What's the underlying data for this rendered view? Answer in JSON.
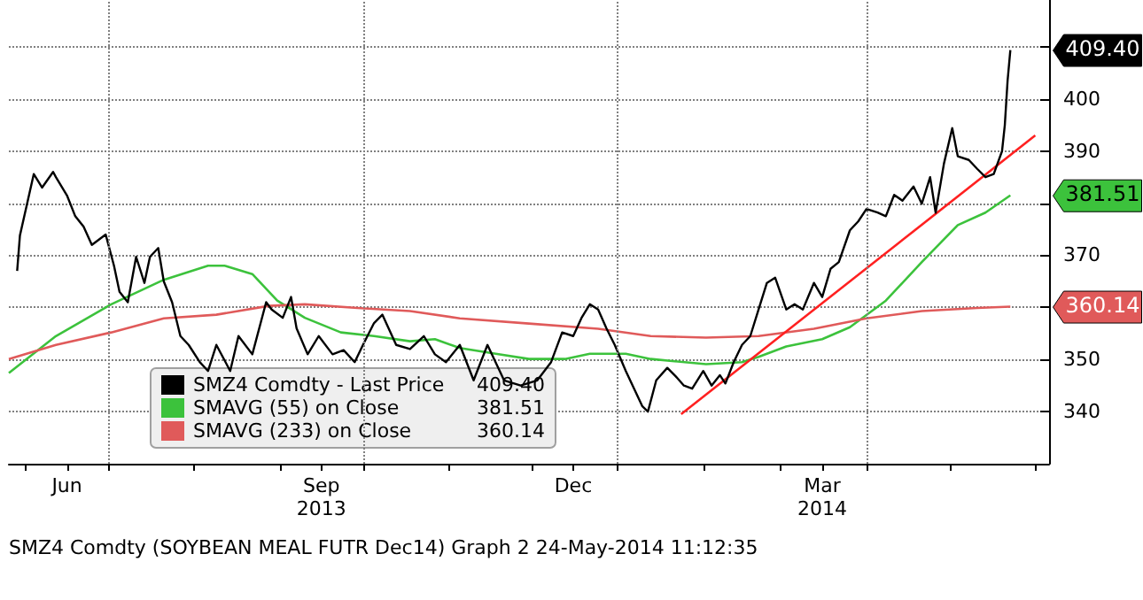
{
  "chart_data": {
    "type": "line",
    "marker": "none",
    "line_style": "solid",
    "grid": "y",
    "legend": "bottom left",
    "xlim": [
      "2013-05-26",
      "2014-06-06"
    ],
    "xticks": [
      {
        "value": "2013-06-01",
        "label": null
      },
      {
        "value": "2013-06-16",
        "label": "Jun"
      },
      {
        "value": "2013-07-01",
        "label": null
      },
      {
        "value": "2013-08-01",
        "label": null
      },
      {
        "value": "2013-09-01",
        "label": null
      },
      {
        "value": "2013-09-16",
        "label": "Sep\n2013"
      },
      {
        "value": "2013-10-01",
        "label": null
      },
      {
        "value": "2013-11-01",
        "label": null
      },
      {
        "value": "2013-12-01",
        "label": null
      },
      {
        "value": "2013-12-16",
        "label": "Dec"
      },
      {
        "value": "2014-01-01",
        "label": null
      },
      {
        "value": "2014-02-01",
        "label": null
      },
      {
        "value": "2014-03-01",
        "label": null
      },
      {
        "value": "2014-03-16",
        "label": "Mar\n2014"
      },
      {
        "value": "2014-04-01",
        "label": null
      },
      {
        "value": "2014-05-01",
        "label": null
      },
      {
        "value": "2014-06-01",
        "label": null
      }
    ],
    "ylim": [
      330,
      419
    ],
    "yticks": [
      340,
      350,
      {
        "value": 360,
        "label": null
      },
      370,
      {
        "value": 380,
        "label": null
      },
      390,
      400,
      {
        "value": 410,
        "label": null
      }
    ],
    "ref_lines": [
      {
        "axis": "x",
        "value": "2013-07-01",
        "color": "#808080",
        "line_style": "dotted"
      },
      {
        "axis": "x",
        "value": "2013-10-01",
        "color": "#808080",
        "line_style": "dotted"
      },
      {
        "axis": "x",
        "value": "2014-01-01",
        "color": "#808080",
        "line_style": "dotted"
      },
      {
        "axis": "x",
        "value": "2014-04-01",
        "color": "#808080",
        "line_style": "dotted"
      }
    ],
    "series": [
      {
        "name": "SMZ4 Comdty - Last Price",
        "color": "#000000",
        "x": [
          "2013-05-29",
          "2013-05-30",
          "2013-06-04",
          "2013-06-07",
          "2013-06-11",
          "2013-06-12",
          "2013-06-16",
          "2013-06-19",
          "2013-06-22",
          "2013-06-25",
          "2013-06-30",
          "2013-07-03",
          "2013-07-05",
          "2013-07-08",
          "2013-07-11",
          "2013-07-14",
          "2013-07-16",
          "2013-07-19",
          "2013-07-21",
          "2013-07-24",
          "2013-07-27",
          "2013-07-30",
          "2013-08-03",
          "2013-08-06",
          "2013-08-09",
          "2013-08-14",
          "2013-08-17",
          "2013-08-22",
          "2013-08-27",
          "2013-08-29",
          "2013-09-02",
          "2013-09-05",
          "2013-09-07",
          "2013-09-11",
          "2013-09-15",
          "2013-09-20",
          "2013-09-24",
          "2013-09-28",
          "2013-10-01",
          "2013-10-05",
          "2013-10-08",
          "2013-10-13",
          "2013-10-18",
          "2013-10-23",
          "2013-10-27",
          "2013-10-31",
          "2013-11-05",
          "2013-11-10",
          "2013-11-15",
          "2013-11-21",
          "2013-11-27",
          "2013-12-03",
          "2013-12-08",
          "2013-12-12",
          "2013-12-16",
          "2013-12-19",
          "2013-12-22",
          "2013-12-25",
          "2013-12-28",
          "2013-12-31",
          "2014-01-04",
          "2014-01-07",
          "2014-01-10",
          "2014-01-12",
          "2014-01-15",
          "2014-01-19",
          "2014-01-22",
          "2014-01-25",
          "2014-01-28",
          "2014-02-01",
          "2014-02-04",
          "2014-02-07",
          "2014-02-09",
          "2014-02-12",
          "2014-02-15",
          "2014-02-18",
          "2014-02-21",
          "2014-02-24",
          "2014-02-27",
          "2014-03-03",
          "2014-03-06",
          "2014-03-09",
          "2014-03-13",
          "2014-03-16",
          "2014-03-19",
          "2014-03-22",
          "2014-03-26",
          "2014-03-29",
          "2014-04-01",
          "2014-04-05",
          "2014-04-08",
          "2014-04-11",
          "2014-04-14",
          "2014-04-18",
          "2014-04-21",
          "2014-04-24",
          "2014-04-26",
          "2014-04-29",
          "2014-05-02",
          "2014-05-04",
          "2014-05-08",
          "2014-05-11",
          "2014-05-14",
          "2014-05-17",
          "2014-05-20",
          "2014-05-21",
          "2014-05-22",
          "2014-05-23"
        ],
        "values": [
          367.0,
          373.8,
          385.6,
          383.0,
          386.0,
          385.0,
          381.5,
          377.5,
          375.5,
          372.0,
          374.0,
          368.0,
          363.0,
          361.0,
          369.7,
          364.7,
          369.7,
          371.4,
          365.0,
          361.0,
          354.5,
          352.8,
          349.5,
          347.8,
          352.8,
          347.8,
          354.5,
          351.0,
          361.0,
          359.6,
          358.0,
          362.0,
          356.0,
          351.0,
          354.5,
          351.0,
          351.8,
          349.5,
          352.8,
          357.0,
          358.6,
          352.8,
          352.0,
          354.5,
          351.0,
          349.5,
          352.8,
          346.0,
          352.8,
          346.0,
          345.0,
          346.0,
          349.5,
          355.2,
          354.5,
          358.0,
          360.6,
          359.6,
          356.0,
          352.8,
          347.8,
          344.4,
          341.0,
          340.0,
          346.0,
          348.4,
          346.8,
          345.0,
          344.4,
          347.8,
          345.0,
          347.0,
          345.4,
          349.5,
          352.8,
          354.5,
          359.6,
          364.7,
          365.7,
          359.6,
          360.6,
          359.6,
          364.7,
          362.0,
          367.4,
          368.7,
          374.8,
          376.5,
          378.9,
          378.2,
          377.5,
          381.6,
          380.5,
          383.2,
          379.9,
          385.0,
          378.2,
          387.6,
          394.4,
          389.0,
          388.3,
          386.6,
          385.0,
          385.6,
          390.0,
          395.0,
          403.5,
          409.4
        ]
      },
      {
        "name": "SMAVG (55) on Close",
        "color": "#3cc23c",
        "x": [
          "2013-05-26",
          "2013-06-12",
          "2013-07-02",
          "2013-07-21",
          "2013-08-06",
          "2013-08-12",
          "2013-08-22",
          "2013-08-31",
          "2013-09-10",
          "2013-09-23",
          "2013-10-05",
          "2013-10-18",
          "2013-10-27",
          "2013-11-05",
          "2013-11-18",
          "2013-11-30",
          "2013-12-13",
          "2013-12-22",
          "2014-01-04",
          "2014-01-13",
          "2014-02-02",
          "2014-02-15",
          "2014-02-21",
          "2014-03-03",
          "2014-03-16",
          "2014-03-26",
          "2014-04-08",
          "2014-04-21",
          "2014-05-04",
          "2014-05-14",
          "2014-05-23"
        ],
        "values": [
          347.4,
          354.5,
          360.6,
          365.3,
          368.0,
          368.0,
          366.4,
          361.3,
          358.0,
          355.2,
          354.5,
          353.5,
          353.9,
          352.2,
          351.1,
          350.1,
          350.1,
          351.1,
          351.1,
          350.1,
          349.1,
          349.5,
          350.5,
          352.5,
          353.9,
          356.2,
          361.3,
          368.7,
          375.8,
          378.2,
          381.51
        ]
      },
      {
        "name": "SMAVG (233) on Close",
        "color": "#e05a5a",
        "x": [
          "2013-05-26",
          "2013-06-12",
          "2013-07-02",
          "2013-07-21",
          "2013-08-09",
          "2013-08-28",
          "2013-09-10",
          "2013-09-29",
          "2013-10-18",
          "2013-11-05",
          "2013-11-30",
          "2013-12-25",
          "2014-01-13",
          "2014-02-02",
          "2014-02-21",
          "2014-03-13",
          "2014-04-01",
          "2014-04-21",
          "2014-05-11",
          "2014-05-23"
        ],
        "values": [
          350.1,
          352.8,
          355.2,
          357.9,
          358.6,
          360.3,
          360.6,
          359.9,
          359.3,
          357.9,
          356.9,
          355.9,
          354.5,
          354.2,
          354.5,
          355.9,
          357.9,
          359.3,
          359.9,
          360.14
        ]
      },
      {
        "color": "#ff2020",
        "x": [
          "2014-01-24",
          "2014-06-01"
        ],
        "values": [
          339.5,
          393.0
        ]
      }
    ],
    "annotations": [
      {
        "text": "409.40",
        "x": "2014-05-23",
        "y": 409.4
      },
      {
        "text": "381.51",
        "x": "2014-05-23",
        "y": 381.51
      },
      {
        "text": "360.14",
        "x": "2014-05-23",
        "y": 360.14
      },
      "SMZ4 Comdty (SOYBEAN MEAL FUTR Dec14) Graph 2 24-May-2014 11:12:35"
    ]
  }
}
